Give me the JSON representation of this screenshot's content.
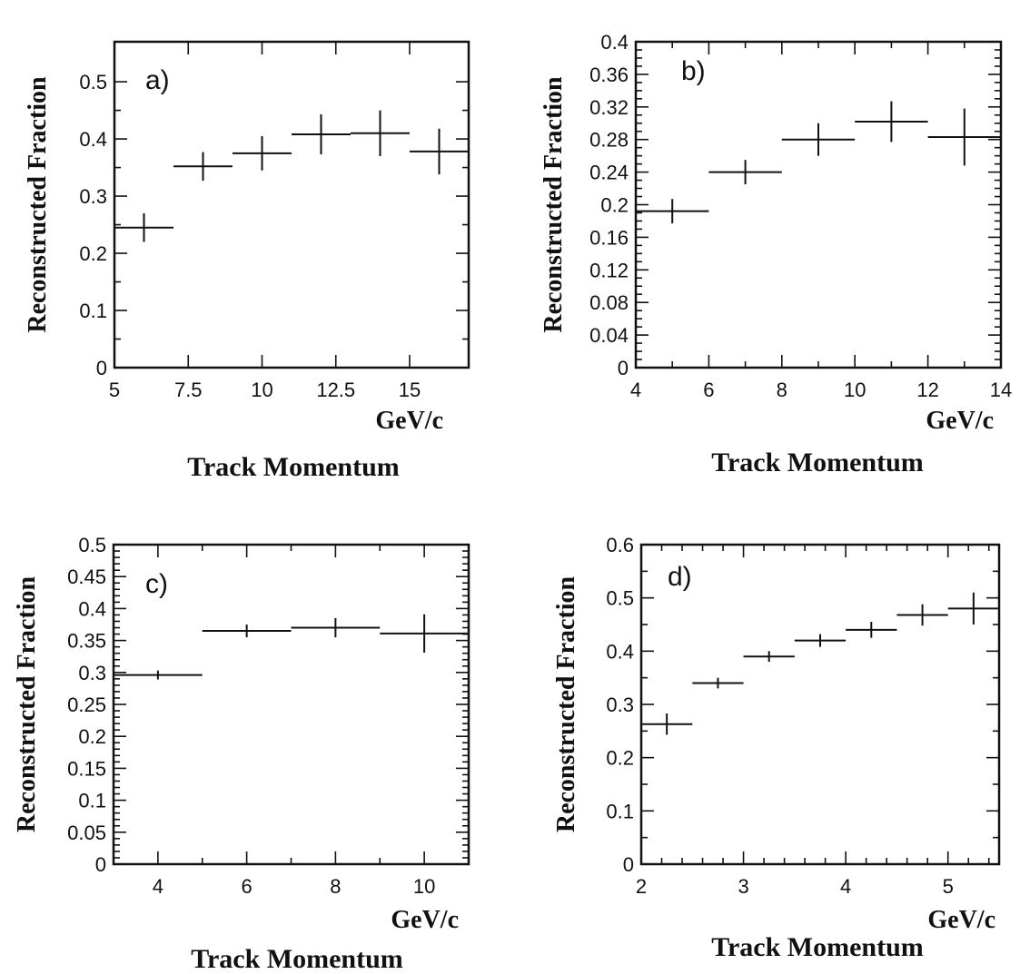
{
  "chart_data": [
    {
      "type": "scatter",
      "panel_label": "a)",
      "ylabel": "Reconstructed Fraction",
      "xunit": "GeV/c",
      "xlabel": "Track Momentum",
      "xlim": [
        5,
        17
      ],
      "ylim": [
        0,
        0.57
      ],
      "xticks": [
        5,
        7.5,
        10,
        12.5,
        15
      ],
      "xtick_labels": [
        "5",
        "7.5",
        "10",
        "12.5",
        "15"
      ],
      "yticks": [
        0,
        0.1,
        0.2,
        0.3,
        0.4,
        0.5
      ],
      "ytick_labels": [
        "0",
        "0.1",
        "0.2",
        "0.3",
        "0.4",
        "0.5"
      ],
      "x": [
        6,
        8,
        10,
        12,
        14,
        16
      ],
      "xerr": [
        1,
        1,
        1,
        1,
        1,
        1
      ],
      "y": [
        0.245,
        0.352,
        0.375,
        0.408,
        0.41,
        0.378
      ],
      "yerr": [
        0.025,
        0.025,
        0.03,
        0.035,
        0.04,
        0.04
      ]
    },
    {
      "type": "scatter",
      "panel_label": "b)",
      "ylabel": "Reconstructed Fraction",
      "xunit": "GeV/c",
      "xlabel": "Track Momentum",
      "xlim": [
        4,
        14
      ],
      "ylim": [
        0,
        0.4
      ],
      "xticks": [
        4,
        6,
        8,
        10,
        12,
        14
      ],
      "xtick_labels": [
        "4",
        "6",
        "8",
        "10",
        "12",
        "14"
      ],
      "yticks": [
        0,
        0.04,
        0.08,
        0.12,
        0.16,
        0.2,
        0.24,
        0.28,
        0.32,
        0.36,
        0.4
      ],
      "ytick_labels": [
        "0",
        "0.04",
        "0.08",
        "0.12",
        "0.16",
        "0.2",
        "0.24",
        "0.28",
        "0.32",
        "0.36",
        "0.4"
      ],
      "x": [
        5,
        7,
        9,
        11,
        13
      ],
      "xerr": [
        1,
        1,
        1,
        1,
        1
      ],
      "y": [
        0.192,
        0.24,
        0.28,
        0.302,
        0.283
      ],
      "yerr": [
        0.015,
        0.015,
        0.02,
        0.025,
        0.035
      ]
    },
    {
      "type": "scatter",
      "panel_label": "c)",
      "ylabel": "Reconstructed Fraction",
      "xunit": "GeV/c",
      "xlabel": "Track Momentum",
      "xlim": [
        3,
        11
      ],
      "ylim": [
        0,
        0.5
      ],
      "xticks": [
        4,
        6,
        8,
        10
      ],
      "xtick_labels": [
        "4",
        "6",
        "8",
        "10"
      ],
      "yticks": [
        0,
        0.05,
        0.1,
        0.15,
        0.2,
        0.25,
        0.3,
        0.35,
        0.4,
        0.45,
        0.5
      ],
      "ytick_labels": [
        "0",
        "0.05",
        "0.1",
        "0.15",
        "0.2",
        "0.25",
        "0.3",
        "0.35",
        "0.4",
        "0.45",
        "0.5"
      ],
      "x": [
        4,
        6,
        8,
        10
      ],
      "xerr": [
        1,
        1,
        1,
        1
      ],
      "y": [
        0.296,
        0.365,
        0.37,
        0.361
      ],
      "yerr": [
        0.007,
        0.01,
        0.015,
        0.03
      ]
    },
    {
      "type": "scatter",
      "panel_label": "d)",
      "ylabel": "Reconstructed Fraction",
      "xunit": "GeV/c",
      "xlabel": "Track Momentum",
      "xlim": [
        2,
        5.5
      ],
      "ylim": [
        0,
        0.6
      ],
      "xticks": [
        2,
        3,
        4,
        5
      ],
      "xtick_labels": [
        "2",
        "3",
        "4",
        "5"
      ],
      "yticks": [
        0,
        0.1,
        0.2,
        0.3,
        0.4,
        0.5,
        0.6
      ],
      "ytick_labels": [
        "0",
        "0.1",
        "0.2",
        "0.3",
        "0.4",
        "0.5",
        "0.6"
      ],
      "x": [
        2.25,
        2.75,
        3.25,
        3.75,
        4.25,
        4.75,
        5.25
      ],
      "xerr": [
        0.25,
        0.25,
        0.25,
        0.25,
        0.25,
        0.25,
        0.25
      ],
      "y": [
        0.263,
        0.34,
        0.39,
        0.42,
        0.44,
        0.468,
        0.48
      ],
      "yerr": [
        0.02,
        0.01,
        0.01,
        0.012,
        0.015,
        0.02,
        0.03
      ]
    }
  ]
}
